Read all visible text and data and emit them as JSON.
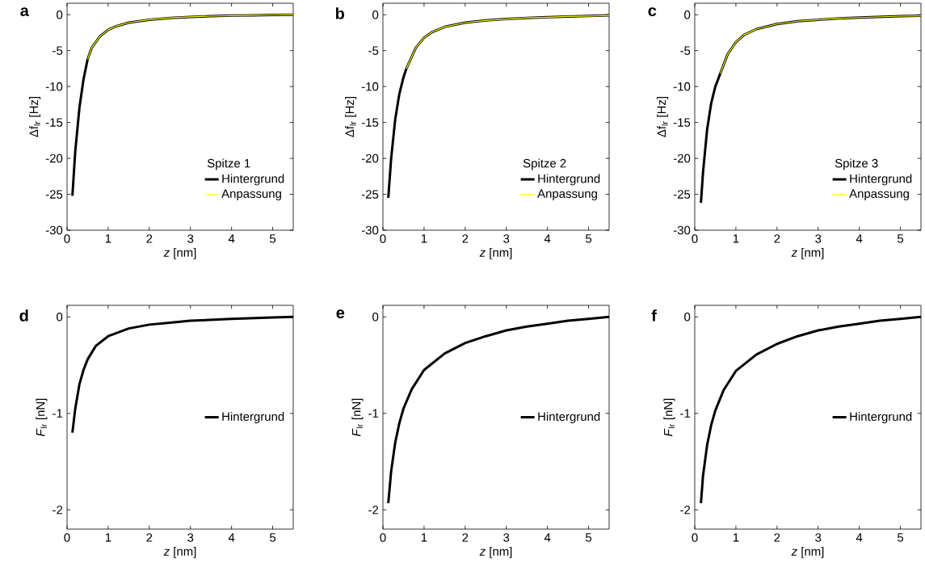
{
  "chart_data": [
    {
      "type": "line",
      "annotations": [
        "a"
      ],
      "legend_title": "Spitze 1",
      "xlabel": "*z* [nm]",
      "ylabel": "Δf$_{lr}$ [Hz]",
      "xlim": [
        0,
        5.5
      ],
      "ylim": [
        -30,
        1.6
      ],
      "xticks": [
        0,
        1,
        2,
        3,
        4,
        5
      ],
      "yticks": [
        -30,
        -25,
        -20,
        -15,
        -10,
        -5,
        0
      ],
      "legend": "bottom right",
      "series": [
        {
          "name": "Hintergrund",
          "color": "#000000",
          "x": [
            0.13,
            0.2,
            0.3,
            0.4,
            0.5,
            0.6,
            0.8,
            1.0,
            1.2,
            1.5,
            2,
            2.5,
            3,
            3.5,
            4,
            4.5,
            5,
            5.5
          ],
          "values": [
            -25.2,
            -19,
            -13,
            -9,
            -6.2,
            -4.6,
            -3,
            -2.1,
            -1.6,
            -1.1,
            -0.7,
            -0.45,
            -0.3,
            -0.2,
            -0.12,
            -0.08,
            -0.03,
            0
          ]
        },
        {
          "name": "Anpassung",
          "color": "#ffff00",
          "x": [
            0.5,
            0.6,
            0.8,
            1.0,
            1.2,
            1.5,
            2,
            2.5,
            3,
            3.5,
            4,
            4.5,
            5,
            5.5
          ],
          "values": [
            -6.2,
            -4.6,
            -3,
            -2.1,
            -1.6,
            -1.1,
            -0.7,
            -0.45,
            -0.3,
            -0.2,
            -0.12,
            -0.08,
            -0.03,
            0
          ]
        }
      ]
    },
    {
      "type": "line",
      "annotations": [
        "b"
      ],
      "legend_title": "Spitze 2",
      "xlabel": "*z* [nm]",
      "ylabel": "Δf$_{lr}$ [Hz]",
      "xlim": [
        0,
        5.5
      ],
      "ylim": [
        -30,
        1.6
      ],
      "xticks": [
        0,
        1,
        2,
        3,
        4,
        5
      ],
      "yticks": [
        -30,
        -25,
        -20,
        -15,
        -10,
        -5,
        0
      ],
      "legend": "bottom right",
      "series": [
        {
          "name": "Hintergrund",
          "color": "#000000",
          "x": [
            0.13,
            0.2,
            0.3,
            0.4,
            0.5,
            0.57,
            0.8,
            1.0,
            1.2,
            1.5,
            2,
            2.5,
            3,
            3.5,
            4,
            4.5,
            5,
            5.5
          ],
          "values": [
            -25.5,
            -20,
            -14.5,
            -11,
            -8.7,
            -7.5,
            -4.6,
            -3.2,
            -2.4,
            -1.7,
            -1.1,
            -0.8,
            -0.6,
            -0.45,
            -0.35,
            -0.25,
            -0.18,
            -0.1
          ]
        },
        {
          "name": "Anpassung",
          "color": "#ffff00",
          "x": [
            0.57,
            0.8,
            1.0,
            1.2,
            1.5,
            2,
            2.5,
            3,
            3.5,
            4,
            4.5,
            5,
            5.5
          ],
          "values": [
            -7.5,
            -4.6,
            -3.2,
            -2.4,
            -1.7,
            -1.1,
            -0.8,
            -0.6,
            -0.45,
            -0.35,
            -0.25,
            -0.18,
            -0.1
          ]
        }
      ]
    },
    {
      "type": "line",
      "annotations": [
        "c"
      ],
      "legend_title": "Spitze 3",
      "xlabel": "*z* [nm]",
      "ylabel": "Δf$_{lr}$ [Hz]",
      "xlim": [
        0,
        5.5
      ],
      "ylim": [
        -30,
        1.6
      ],
      "xticks": [
        0,
        1,
        2,
        3,
        4,
        5
      ],
      "yticks": [
        -30,
        -25,
        -20,
        -15,
        -10,
        -5,
        0
      ],
      "legend": "bottom right",
      "series": [
        {
          "name": "Hintergrund",
          "color": "#000000",
          "x": [
            0.15,
            0.2,
            0.3,
            0.4,
            0.5,
            0.62,
            0.8,
            1.0,
            1.2,
            1.5,
            2,
            2.5,
            3,
            3.5,
            4,
            4.5,
            5,
            5.5
          ],
          "values": [
            -26.2,
            -22,
            -16,
            -12.3,
            -10,
            -8.2,
            -5.5,
            -3.8,
            -2.8,
            -2,
            -1.3,
            -0.9,
            -0.7,
            -0.5,
            -0.4,
            -0.3,
            -0.2,
            -0.15
          ]
        },
        {
          "name": "Anpassung",
          "color": "#ffff00",
          "x": [
            0.62,
            0.8,
            1.0,
            1.2,
            1.5,
            2,
            2.5,
            3,
            3.5,
            4,
            4.5,
            5,
            5.5
          ],
          "values": [
            -8.2,
            -5.5,
            -3.8,
            -2.8,
            -2,
            -1.3,
            -0.9,
            -0.7,
            -0.5,
            -0.4,
            -0.3,
            -0.2,
            -0.15
          ]
        }
      ]
    },
    {
      "type": "line",
      "annotations": [
        "d"
      ],
      "xlabel": "*z* [nm]",
      "ylabel": "*F*$_{lr}$ [nN]",
      "xlim": [
        0,
        5.5
      ],
      "ylim": [
        -2.2,
        0.12
      ],
      "xticks": [
        0,
        1,
        2,
        3,
        4,
        5
      ],
      "yticks": [
        -2,
        -1,
        0
      ],
      "legend": "right",
      "series": [
        {
          "name": "Hintergrund",
          "color": "#000000",
          "x": [
            0.13,
            0.2,
            0.3,
            0.4,
            0.5,
            0.7,
            1,
            1.5,
            2,
            2.5,
            3,
            4,
            5,
            5.5
          ],
          "values": [
            -1.2,
            -0.95,
            -0.7,
            -0.55,
            -0.44,
            -0.3,
            -0.2,
            -0.12,
            -0.08,
            -0.06,
            -0.04,
            -0.02,
            -0.005,
            0
          ]
        }
      ]
    },
    {
      "type": "line",
      "annotations": [
        "e"
      ],
      "xlabel": "*z* [nm]",
      "ylabel": "*F*$_{lr}$ [nN]",
      "xlim": [
        0,
        5.5
      ],
      "ylim": [
        -2.2,
        0.12
      ],
      "xticks": [
        0,
        1,
        2,
        3,
        4,
        5
      ],
      "yticks": [
        -2,
        -1,
        0
      ],
      "legend": "right",
      "series": [
        {
          "name": "Hintergrund",
          "color": "#000000",
          "x": [
            0.13,
            0.2,
            0.3,
            0.4,
            0.5,
            0.7,
            1,
            1.5,
            2,
            2.5,
            3,
            3.5,
            4,
            4.5,
            5,
            5.5
          ],
          "values": [
            -1.93,
            -1.6,
            -1.3,
            -1.1,
            -0.95,
            -0.75,
            -0.55,
            -0.38,
            -0.27,
            -0.2,
            -0.14,
            -0.1,
            -0.07,
            -0.04,
            -0.02,
            0
          ]
        }
      ]
    },
    {
      "type": "line",
      "annotations": [
        "f"
      ],
      "xlabel": "*z* [nm]",
      "ylabel": "*F*$_{lr}$ [nN]",
      "xlim": [
        0,
        5.5
      ],
      "ylim": [
        -2.2,
        0.12
      ],
      "xticks": [
        0,
        1,
        2,
        3,
        4,
        5
      ],
      "yticks": [
        -2,
        -1,
        0
      ],
      "legend": "right",
      "series": [
        {
          "name": "Hintergrund",
          "color": "#000000",
          "x": [
            0.15,
            0.2,
            0.3,
            0.4,
            0.5,
            0.7,
            1,
            1.5,
            2,
            2.5,
            3,
            3.5,
            4,
            4.5,
            5,
            5.5
          ],
          "values": [
            -1.93,
            -1.65,
            -1.33,
            -1.12,
            -0.97,
            -0.76,
            -0.56,
            -0.39,
            -0.28,
            -0.2,
            -0.14,
            -0.1,
            -0.07,
            -0.04,
            -0.02,
            0
          ]
        }
      ]
    }
  ]
}
